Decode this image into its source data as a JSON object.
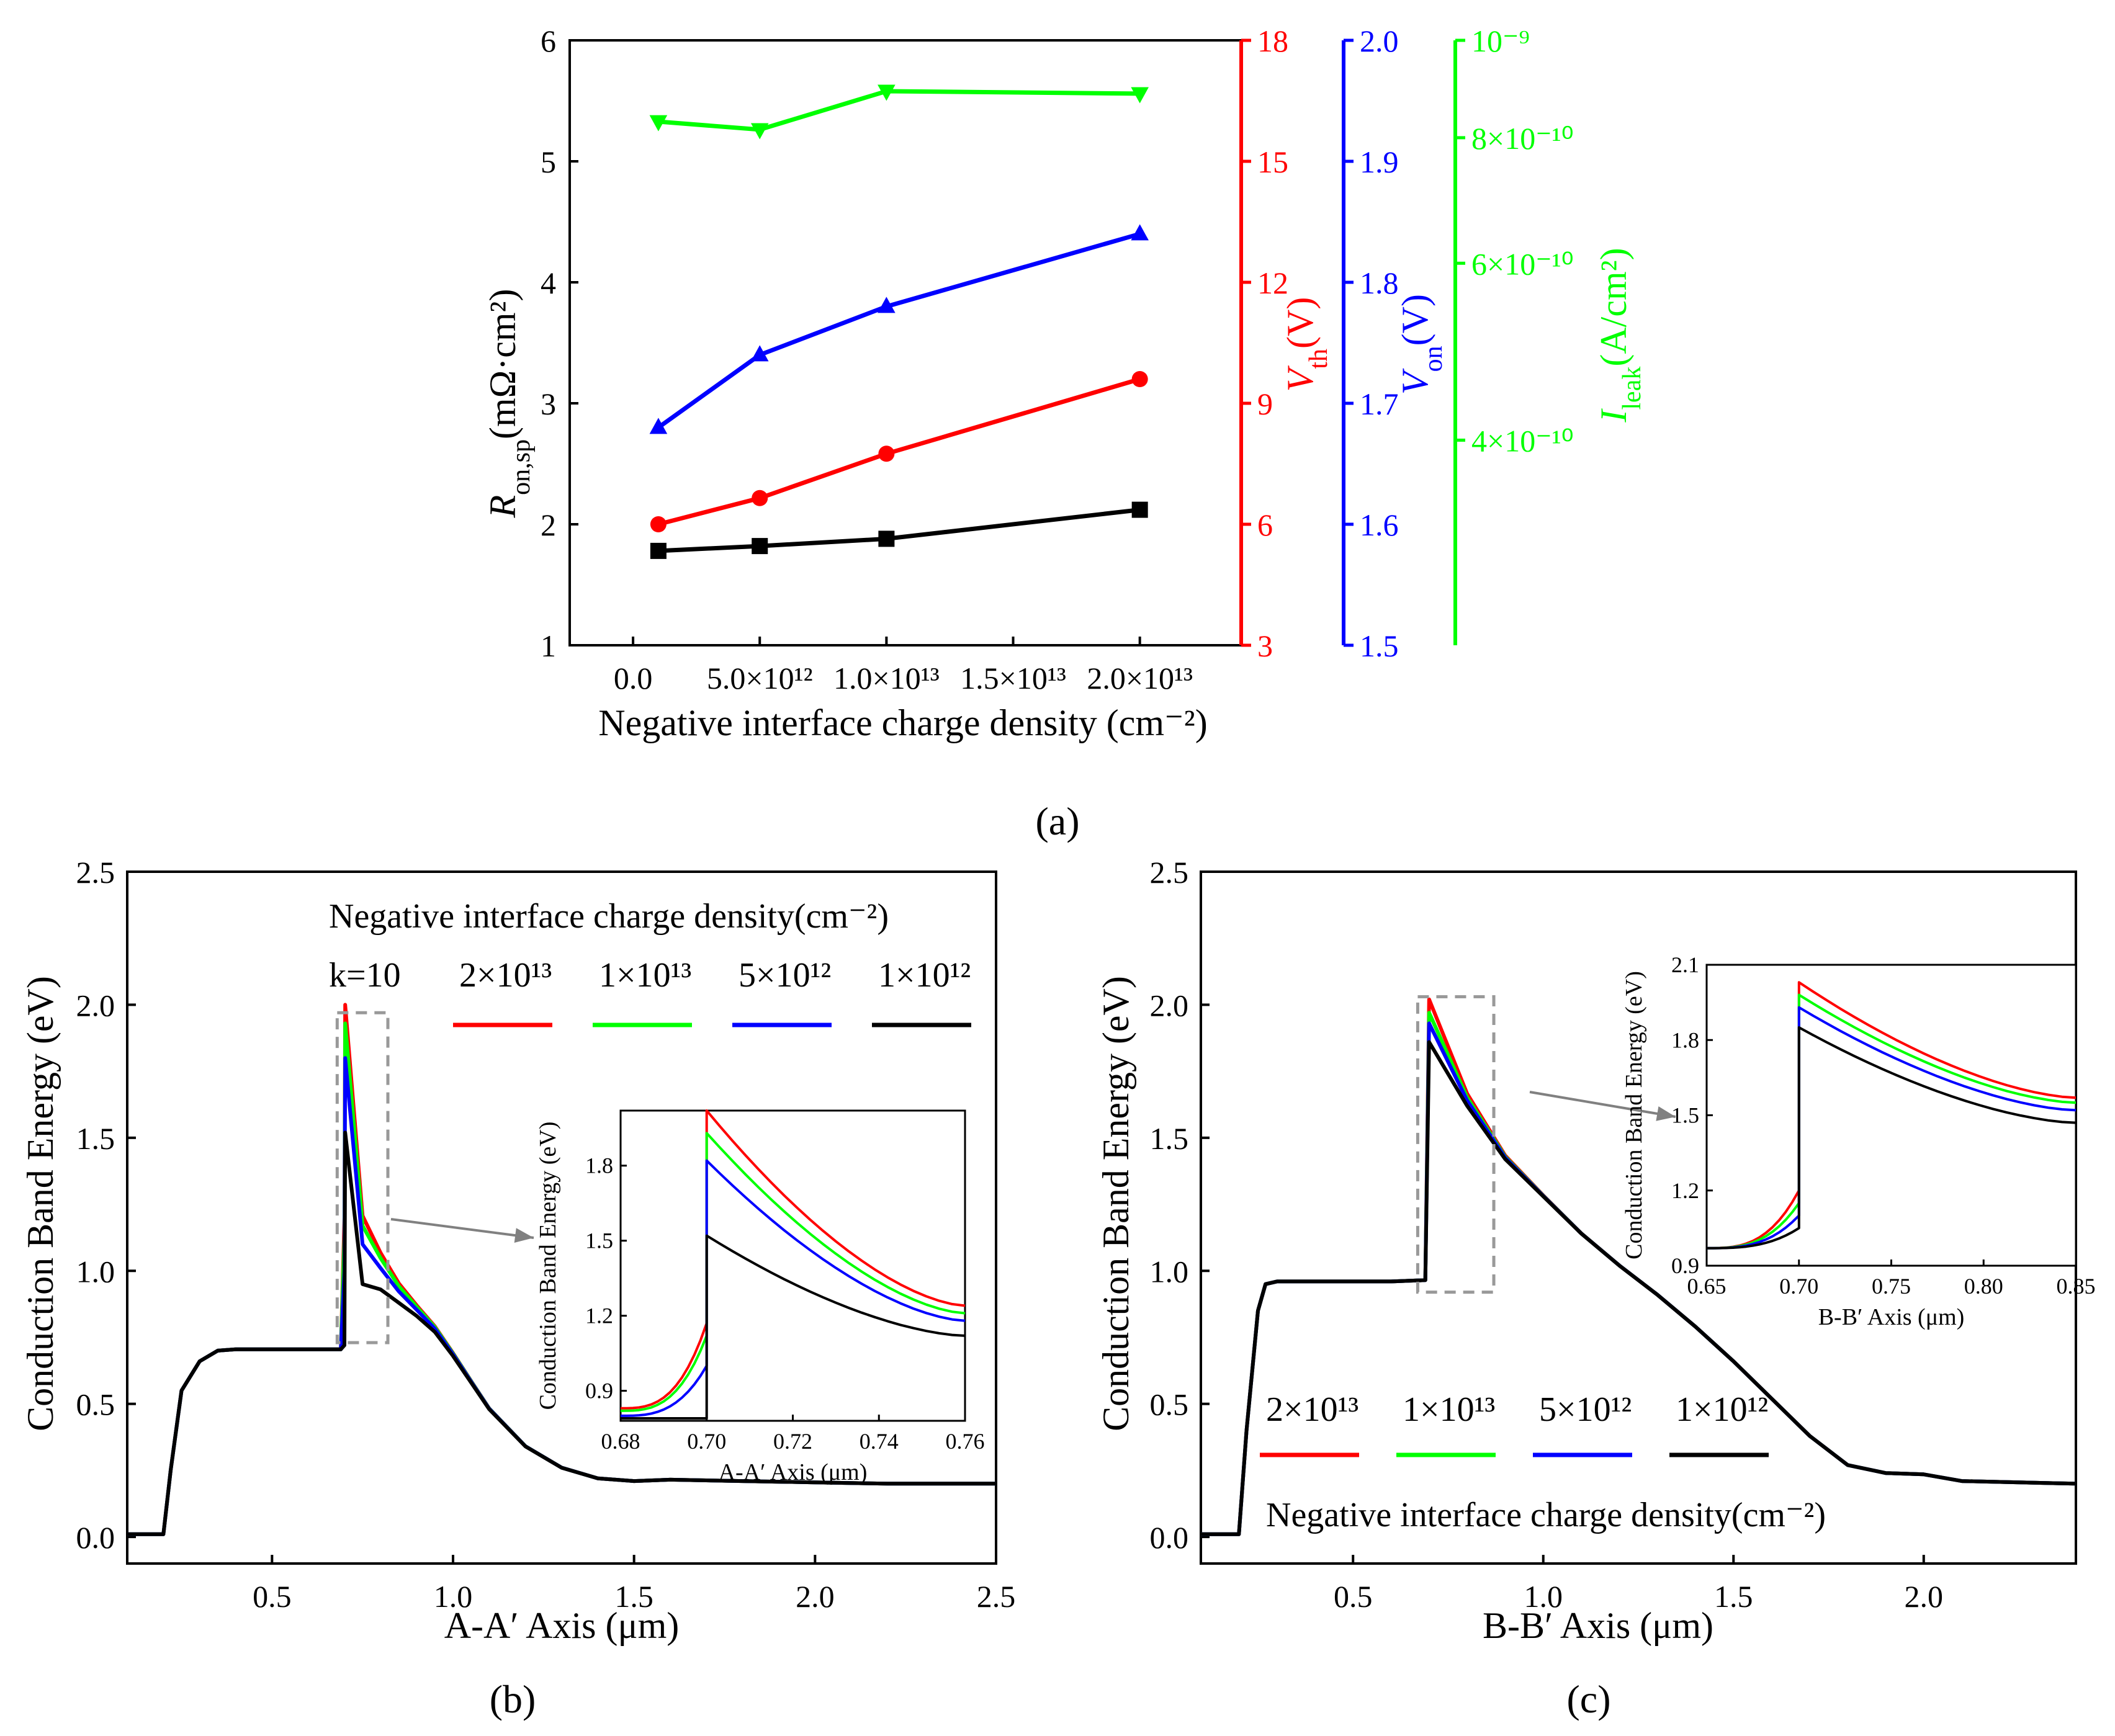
{
  "colors": {
    "red": "#ff0000",
    "green": "#00ff00",
    "blue": "#0000ff",
    "black": "#000000",
    "gray": "#999999"
  },
  "panel_a_label": "(a)",
  "panel_b_label": "(b)",
  "panel_c_label": "(c)",
  "chart_data": [
    {
      "id": "a",
      "type": "line",
      "xlabel": "Negative interface charge density (cm⁻²)",
      "xlim": [
        -2500000000000.0,
        24000000000000.0
      ],
      "x": [
        1000000000000.0,
        5000000000000.0,
        10000000000000.0,
        20000000000000.0
      ],
      "xticks": [
        0,
        5000000000000.0,
        10000000000000.0,
        15000000000000.0,
        20000000000000.0
      ],
      "xtick_labels": [
        "0.0",
        "5.0×10¹²",
        "1.0×10¹³",
        "1.5×10¹³",
        "2.0×10¹³"
      ],
      "axes": [
        {
          "name": "Ron,sp",
          "label": "R_on,sp (mΩ·cm²)",
          "label_main": "R",
          "label_sub": "on,sp",
          "label_rest": "(mΩ·cm²)",
          "color": "#000000",
          "lim": [
            1,
            6
          ],
          "ticks": [
            1,
            2,
            3,
            4,
            5,
            6
          ],
          "tick_labels": [
            "1",
            "2",
            "3",
            "4",
            "5",
            "6"
          ],
          "marker": "square",
          "values": [
            1.78,
            1.82,
            1.88,
            2.12
          ]
        },
        {
          "name": "Vth",
          "label": "V_th (V)",
          "label_main": "V",
          "label_sub": "th",
          "label_rest": "(V)",
          "color": "#ff0000",
          "lim": [
            3,
            18
          ],
          "ticks": [
            3,
            6,
            9,
            12,
            15,
            18
          ],
          "tick_labels": [
            "3",
            "6",
            "9",
            "12",
            "15",
            "18"
          ],
          "marker": "circle",
          "values": [
            6.0,
            6.65,
            7.75,
            9.6
          ]
        },
        {
          "name": "Von",
          "label": "V_on (V)",
          "label_main": "V",
          "label_sub": "on",
          "label_rest": "(V)",
          "color": "#0000ff",
          "lim": [
            1.5,
            2.0
          ],
          "ticks": [
            1.5,
            1.6,
            1.7,
            1.8,
            1.9,
            2.0
          ],
          "tick_labels": [
            "1.5",
            "1.6",
            "1.7",
            "1.8",
            "1.9",
            "2.0"
          ],
          "marker": "triangle-up",
          "values": [
            1.68,
            1.74,
            1.78,
            1.84
          ]
        },
        {
          "name": "Ileak",
          "label": "I_leak (A/cm²)",
          "label_main": "I",
          "label_sub": "leak",
          "label_rest": "(A/cm²)",
          "color": "#00ff00",
          "scale": "log",
          "lim": [
            2.5e-10,
            1e-09
          ],
          "ticks": [
            4e-10,
            6e-10,
            8e-10,
            1e-09
          ],
          "tick_labels": [
            "4×10⁻¹⁰",
            "6×10⁻¹⁰",
            "8×10⁻¹⁰",
            "10⁻⁹"
          ],
          "marker": "triangle-down",
          "values": [
            8.3e-10,
            8.15e-10,
            8.9e-10,
            8.85e-10
          ]
        }
      ]
    },
    {
      "id": "b",
      "type": "line",
      "xlabel": "A-A′ Axis (μm)",
      "ylabel": "Conduction Band Energy (eV)",
      "xlim": [
        0.1,
        2.5
      ],
      "ylim": [
        -0.1,
        2.5
      ],
      "xticks": [
        0.5,
        1.0,
        1.5,
        2.0,
        2.5
      ],
      "xtick_labels": [
        "0.5",
        "1.0",
        "1.5",
        "2.0",
        "2.5"
      ],
      "yticks": [
        0,
        0.5,
        1.0,
        1.5,
        2.0,
        2.5
      ],
      "ytick_labels": [
        "0.0",
        "0.5",
        "1.0",
        "1.5",
        "2.0",
        "2.5"
      ],
      "legend_title": "Negative interface charge density(cm⁻²)",
      "legend_note": "k=10",
      "series": [
        {
          "name": "2×10¹³",
          "color": "#ff0000",
          "peak": 2.0
        },
        {
          "name": "1×10¹³",
          "color": "#00ff00",
          "peak": 1.93
        },
        {
          "name": "5×10¹²",
          "color": "#0000ff",
          "peak": 1.8
        },
        {
          "name": "1×10¹²",
          "color": "#000000",
          "peak": 1.52
        }
      ],
      "base_curve": {
        "x": [
          0.1,
          0.2,
          0.22,
          0.25,
          0.3,
          0.35,
          0.4,
          0.5,
          0.6,
          0.69,
          0.7,
          0.75,
          0.8,
          0.85,
          0.9,
          0.95,
          1.0,
          1.05,
          1.1,
          1.2,
          1.3,
          1.4,
          1.5,
          1.6,
          1.8,
          2.0,
          2.2,
          2.5
        ],
        "y": [
          0.01,
          0.01,
          0.25,
          0.55,
          0.66,
          0.7,
          0.705,
          0.705,
          0.705,
          0.705,
          0.72,
          0.95,
          0.93,
          0.88,
          0.83,
          0.77,
          0.68,
          0.58,
          0.48,
          0.34,
          0.26,
          0.22,
          0.21,
          0.215,
          0.21,
          0.205,
          0.2,
          0.2
        ]
      },
      "inset": {
        "xlabel": "A-A′ Axis (μm)",
        "ylabel": "Conduction Band Energy (eV)",
        "xlim": [
          0.68,
          0.76
        ],
        "ylim": [
          0.78,
          2.02
        ],
        "xticks": [
          0.68,
          0.7,
          0.72,
          0.74,
          0.76
        ],
        "xtick_labels": [
          "0.68",
          "0.70",
          "0.72",
          "0.74",
          "0.76"
        ],
        "yticks": [
          0.9,
          1.2,
          1.5,
          1.8
        ],
        "ytick_labels": [
          "0.9",
          "1.2",
          "1.5",
          "1.8"
        ],
        "series": [
          {
            "color": "#ff0000",
            "pre_start": 0.83,
            "pre_end": 1.17,
            "peak": 2.02,
            "end": 1.24
          },
          {
            "color": "#00ff00",
            "pre_start": 0.82,
            "pre_end": 1.12,
            "peak": 1.93,
            "end": 1.21
          },
          {
            "color": "#0000ff",
            "pre_start": 0.8,
            "pre_end": 1.0,
            "peak": 1.82,
            "end": 1.18
          },
          {
            "color": "#000000",
            "pre_start": 0.79,
            "pre_end": 0.79,
            "peak": 1.52,
            "end": 1.12
          }
        ]
      }
    },
    {
      "id": "c",
      "type": "line",
      "xlabel": "B-B′ Axis (μm)",
      "ylabel": "Conduction Band Energy (eV)",
      "xlim": [
        0.1,
        2.4
      ],
      "ylim": [
        -0.1,
        2.5
      ],
      "xticks": [
        0.5,
        1.0,
        1.5,
        2.0
      ],
      "xtick_labels": [
        "0.5",
        "1.0",
        "1.5",
        "2.0"
      ],
      "yticks": [
        0,
        0.5,
        1.0,
        1.5,
        2.0,
        2.5
      ],
      "ytick_labels": [
        "0.0",
        "0.5",
        "1.0",
        "1.5",
        "2.0",
        "2.5"
      ],
      "legend_title": "Negative interface charge density(cm⁻²)",
      "series": [
        {
          "name": "2×10¹³",
          "color": "#ff0000",
          "peak": 2.02
        },
        {
          "name": "1×10¹³",
          "color": "#00ff00",
          "peak": 1.97
        },
        {
          "name": "5×10¹²",
          "color": "#0000ff",
          "peak": 1.93
        },
        {
          "name": "1×10¹²",
          "color": "#000000",
          "peak": 1.86
        }
      ],
      "base_curve": {
        "x": [
          0.1,
          0.2,
          0.22,
          0.25,
          0.27,
          0.3,
          0.4,
          0.5,
          0.6,
          0.69,
          0.7,
          0.8,
          0.9,
          1.0,
          1.1,
          1.2,
          1.3,
          1.4,
          1.5,
          1.6,
          1.7,
          1.8,
          1.9,
          2.0,
          2.1,
          2.4
        ],
        "y": [
          0.01,
          0.01,
          0.4,
          0.85,
          0.95,
          0.96,
          0.96,
          0.96,
          0.96,
          0.965,
          1.86,
          1.62,
          1.42,
          1.28,
          1.14,
          1.02,
          0.91,
          0.79,
          0.66,
          0.52,
          0.38,
          0.27,
          0.24,
          0.235,
          0.21,
          0.2
        ]
      },
      "inset": {
        "xlabel": "B-B′ Axis (μm)",
        "ylabel": "Conduction Band Energy (eV)",
        "xlim": [
          0.65,
          0.85
        ],
        "ylim": [
          0.9,
          2.1
        ],
        "xticks": [
          0.65,
          0.7,
          0.75,
          0.8,
          0.85
        ],
        "xtick_labels": [
          "0.65",
          "0.70",
          "0.75",
          "0.80",
          "0.85"
        ],
        "yticks": [
          0.9,
          1.2,
          1.5,
          1.8,
          2.1
        ],
        "ytick_labels": [
          "0.9",
          "1.2",
          "1.5",
          "1.8",
          "2.1"
        ],
        "series": [
          {
            "color": "#ff0000",
            "pre_start": 0.97,
            "pre_end": 1.2,
            "peak": 2.03,
            "end": 1.57
          },
          {
            "color": "#00ff00",
            "pre_start": 0.97,
            "pre_end": 1.15,
            "peak": 1.98,
            "end": 1.55
          },
          {
            "color": "#0000ff",
            "pre_start": 0.97,
            "pre_end": 1.1,
            "peak": 1.93,
            "end": 1.52
          },
          {
            "color": "#000000",
            "pre_start": 0.97,
            "pre_end": 1.05,
            "peak": 1.85,
            "end": 1.47
          }
        ]
      }
    }
  ]
}
